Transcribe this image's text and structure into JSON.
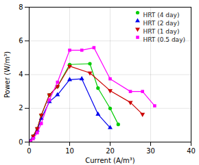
{
  "chart_data": {
    "type": "line",
    "xlabel": "Current (A/m³)",
    "ylabel": "Power (W/m³)",
    "series": [
      {
        "name": "HRT (4 day)",
        "color": "#00cc00",
        "marker": "circle",
        "x": [
          0.3,
          1,
          2,
          3,
          5,
          7,
          10,
          15,
          17,
          20,
          22
        ],
        "values": [
          0.05,
          0.35,
          0.8,
          1.6,
          2.8,
          3.3,
          4.6,
          4.65,
          3.2,
          2.0,
          1.05
        ]
      },
      {
        "name": "HRT (2 day)",
        "color": "#0000ee",
        "marker": "triangle-up",
        "x": [
          0.3,
          1,
          2,
          3,
          5,
          7,
          10,
          13,
          17,
          20
        ],
        "values": [
          0.05,
          0.3,
          0.7,
          1.4,
          2.4,
          2.8,
          3.7,
          3.75,
          1.65,
          0.85
        ]
      },
      {
        "name": "HRT (1 day)",
        "color": "#cc0000",
        "marker": "triangle-down",
        "x": [
          0.3,
          1,
          2,
          3,
          5,
          7,
          10,
          15,
          20,
          25,
          28
        ],
        "values": [
          0.05,
          0.35,
          0.8,
          1.6,
          2.8,
          3.3,
          4.5,
          4.1,
          3.05,
          2.35,
          1.65
        ]
      },
      {
        "name": "HRT (0.5 day)",
        "color": "#ff00ff",
        "marker": "square",
        "x": [
          0.3,
          1,
          2,
          3,
          5,
          7,
          10,
          13,
          16,
          20,
          25,
          28,
          31
        ],
        "values": [
          0.05,
          0.2,
          0.55,
          1.1,
          2.5,
          3.55,
          5.45,
          5.45,
          5.6,
          3.75,
          3.0,
          3.0,
          2.15
        ]
      }
    ],
    "xlim": [
      0,
      40
    ],
    "ylim": [
      0,
      8
    ],
    "xticks": [
      0,
      10,
      20,
      30,
      40
    ],
    "yticks": [
      0,
      2,
      4,
      6,
      8
    ],
    "grid": true,
    "legend": "upper right"
  }
}
